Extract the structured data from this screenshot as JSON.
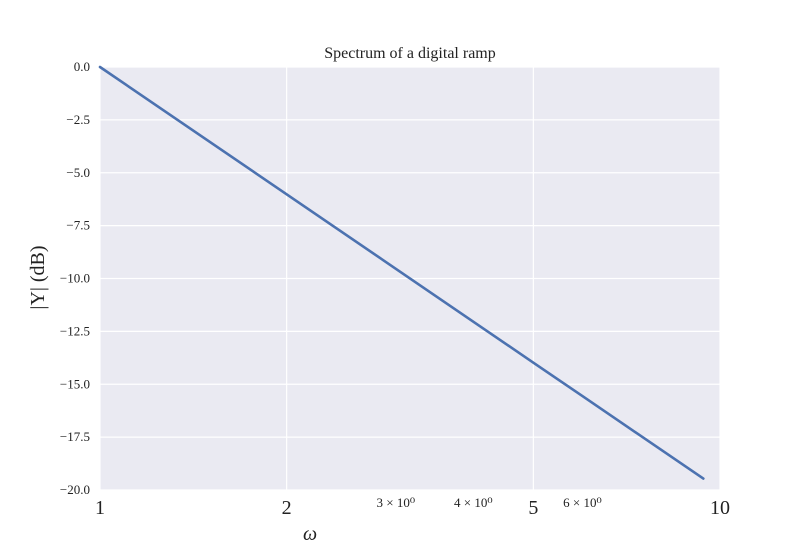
{
  "chart_data": {
    "type": "line",
    "title": "Spectrum of a digital ramp",
    "xlabel": "ω",
    "ylabel": "|Y| (dB)",
    "x_scale": "log",
    "xlim": [
      1,
      10
    ],
    "ylim": [
      -20,
      0
    ],
    "grid": true,
    "x_major_ticks": [
      {
        "value": 1,
        "label": "1"
      },
      {
        "value": 2,
        "label": "2"
      },
      {
        "value": 5,
        "label": "5"
      },
      {
        "value": 10,
        "label": "10"
      }
    ],
    "x_minor_ticks": [
      {
        "value": 3,
        "label": "3 × 10⁰"
      },
      {
        "value": 4,
        "label": "4 × 10⁰"
      },
      {
        "value": 6,
        "label": "6 × 10⁰"
      }
    ],
    "y_ticks": [
      {
        "value": 0,
        "label": "0.0"
      },
      {
        "value": -2.5,
        "label": "−2.5"
      },
      {
        "value": -5,
        "label": "−5.0"
      },
      {
        "value": -7.5,
        "label": "−7.5"
      },
      {
        "value": -10,
        "label": "−10.0"
      },
      {
        "value": -12.5,
        "label": "−12.5"
      },
      {
        "value": -15,
        "label": "−15.0"
      },
      {
        "value": -17.5,
        "label": "−17.5"
      },
      {
        "value": -20,
        "label": "−20.0"
      }
    ],
    "series": [
      {
        "color": "#4c72b0",
        "x": [
          1,
          2,
          3,
          4,
          5,
          6,
          7,
          8,
          9.4
        ],
        "y": [
          0,
          -6.02,
          -9.54,
          -12.04,
          -13.98,
          -15.56,
          -16.9,
          -18.06,
          -19.46
        ]
      }
    ]
  },
  "colors": {
    "plot_background": "#eaeaf2",
    "grid": "#ffffff",
    "line": "#4c72b0"
  }
}
